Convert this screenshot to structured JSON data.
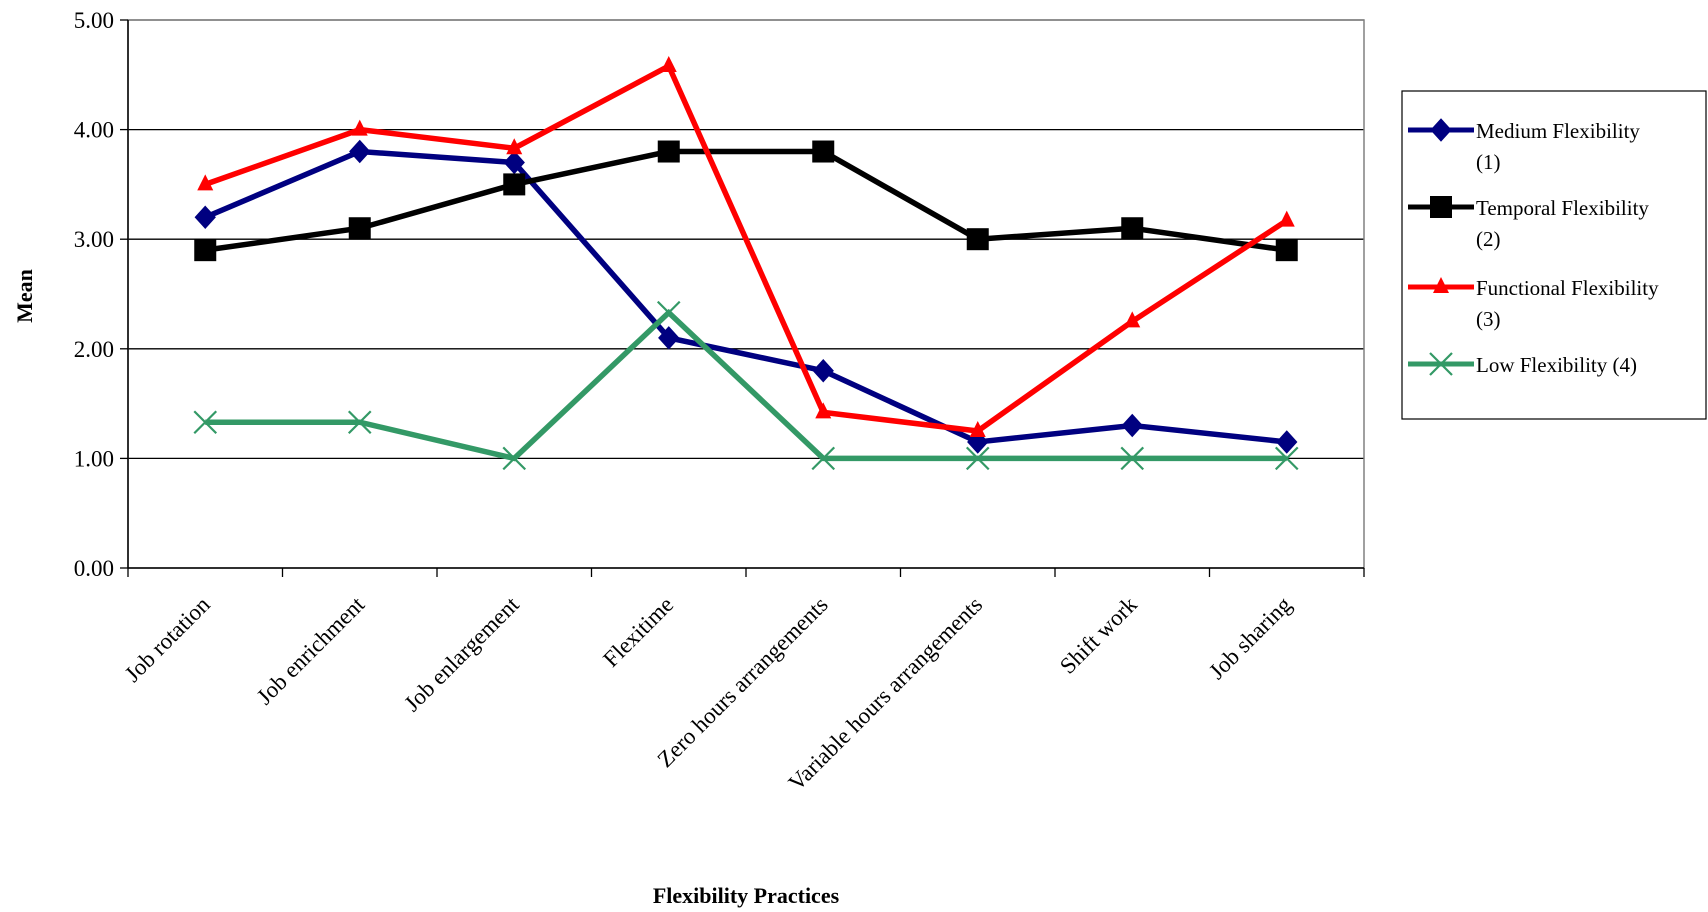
{
  "chart_data": {
    "type": "line",
    "title": "",
    "xlabel": "Flexibility Practices",
    "ylabel": "Mean",
    "ylim": [
      0,
      5
    ],
    "yticks": [
      "0.00",
      "1.00",
      "2.00",
      "3.00",
      "4.00",
      "5.00"
    ],
    "grid": true,
    "legend_position": "right",
    "categories": [
      "Job rotation",
      "Job enrichment",
      "Job enlargement",
      "Flexitime",
      "Zero hours arrangements",
      "Variable hours arrangements",
      "Shift work",
      "Job sharing"
    ],
    "series": [
      {
        "name": "Medium Flexibility (1)",
        "label_lines": [
          "Medium Flexibility",
          "(1)"
        ],
        "color": "#000080",
        "marker": "diamond",
        "values": [
          3.2,
          3.8,
          3.7,
          2.1,
          1.8,
          1.15,
          1.3,
          1.15
        ]
      },
      {
        "name": "Temporal Flexibility (2)",
        "label_lines": [
          "Temporal Flexibility",
          "(2)"
        ],
        "color": "#000000",
        "marker": "square",
        "values": [
          2.9,
          3.1,
          3.5,
          3.8,
          3.8,
          3.0,
          3.1,
          2.9
        ]
      },
      {
        "name": "Functional Flexibility (3)",
        "label_lines": [
          "Functional Flexibility",
          "(3)"
        ],
        "color": "#ff0000",
        "marker": "triangle",
        "values": [
          3.5,
          4.0,
          3.83,
          4.58,
          1.42,
          1.25,
          2.25,
          3.17
        ]
      },
      {
        "name": "Low Flexibility (4)",
        "label_lines": [
          "Low Flexibility (4)"
        ],
        "color": "#339966",
        "marker": "x",
        "values": [
          1.33,
          1.33,
          1.0,
          2.33,
          1.0,
          1.0,
          1.0,
          1.0
        ]
      }
    ]
  }
}
